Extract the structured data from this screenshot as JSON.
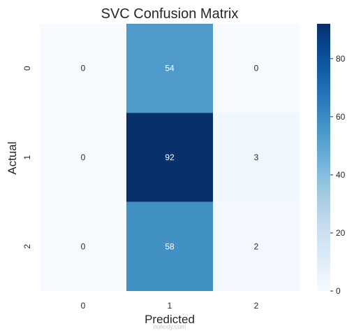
{
  "chart_data": {
    "type": "heatmap",
    "title": "SVC Confusion Matrix",
    "xlabel": "Predicted",
    "ylabel": "Actual",
    "x_categories": [
      "0",
      "1",
      "2"
    ],
    "y_categories": [
      "0",
      "1",
      "2"
    ],
    "values": [
      [
        0,
        54,
        0
      ],
      [
        0,
        92,
        3
      ],
      [
        0,
        58,
        2
      ]
    ],
    "colormap": "Blues",
    "colorbar": {
      "min": 0,
      "max": 92,
      "ticks": [
        0,
        20,
        40,
        60,
        80
      ]
    },
    "annotations": true,
    "grid": false
  },
  "watermark": "nofexly.com",
  "colors": {
    "cmap_low": "#f7fbff",
    "cmap_high": "#08306b",
    "text_dark": "#262626",
    "text_light": "#ffffff"
  }
}
